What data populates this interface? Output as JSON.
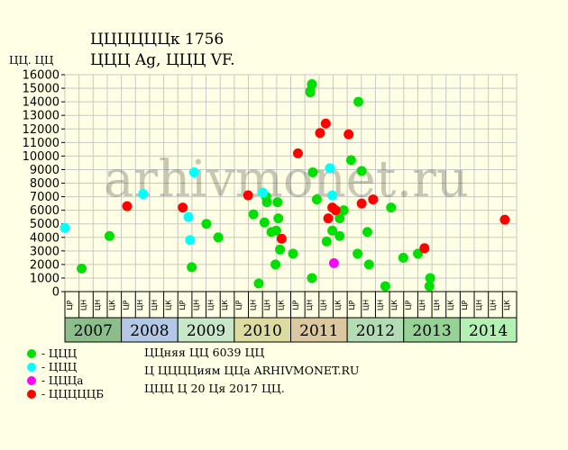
{
  "title_line1": "ЦЦЦЦЦЦк 1756",
  "title_line2": "ЦЦЦ Ag, ЦЦЦ VF.",
  "y_unit": "ЦЦ. ЦЦ",
  "watermark": "arhivmonet.ru",
  "legend": [
    {
      "label": "- ЦЦЦ",
      "color": "#00e000"
    },
    {
      "label": "- ЦЦЦ",
      "color": "#00ffff"
    },
    {
      "label": "- ЦЦЦа",
      "color": "#ff00ff"
    },
    {
      "label": "- ЦЦЦЦЦБ",
      "color": "#ff0000"
    }
  ],
  "notes": [
    "ЦЦняя ЦЦ 6039 ЦЦ",
    "Ц ЦЦЦЦиям ЦЦа ARHIVMONET.RU",
    "ЦЦЦ Ц 20 Ця 2017 ЦЦ."
  ],
  "chart_data": {
    "type": "scatter",
    "ylim": [
      0,
      16000
    ],
    "yticks": [
      0,
      1000,
      2000,
      3000,
      4000,
      5000,
      6000,
      7000,
      8000,
      9000,
      10000,
      11000,
      12000,
      13000,
      14000,
      15000,
      16000
    ],
    "grid": true,
    "legend_position": "bottom-left",
    "x_domain": [
      2007.0,
      2015.0
    ],
    "years": [
      {
        "label": "2007",
        "color": "#8cbe8c"
      },
      {
        "label": "2008",
        "color": "#b4c8e6"
      },
      {
        "label": "2009",
        "color": "#c8e6c8"
      },
      {
        "label": "2010",
        "color": "#dcdca0"
      },
      {
        "label": "2011",
        "color": "#dcc8a0"
      },
      {
        "label": "2012",
        "color": "#b4dcb4"
      },
      {
        "label": "2013",
        "color": "#96d296"
      },
      {
        "label": "2014",
        "color": "#b4f0b4"
      }
    ],
    "month_labels": [
      "ЦР",
      "ЦН",
      "ЦН",
      "ЦК"
    ],
    "series": [
      {
        "name": "ЦЦЦ",
        "color": "#00e000",
        "points": [
          [
            2007.296,
            1700
          ],
          [
            2007.789,
            4100
          ],
          [
            2009.246,
            1800
          ],
          [
            2009.506,
            5000
          ],
          [
            2009.716,
            4000
          ],
          [
            2010.339,
            5700
          ],
          [
            2010.433,
            600
          ],
          [
            2010.563,
            7000
          ],
          [
            2010.534,
            5100
          ],
          [
            2010.577,
            6600
          ],
          [
            2010.657,
            4400
          ],
          [
            2010.743,
            4500
          ],
          [
            2010.729,
            2000
          ],
          [
            2010.765,
            6600
          ],
          [
            2010.78,
            5400
          ],
          [
            2010.809,
            3100
          ],
          [
            2011.04,
            2800
          ],
          [
            2011.346,
            14700
          ],
          [
            2011.346,
            14800
          ],
          [
            2011.375,
            15300
          ],
          [
            2011.39,
            8800
          ],
          [
            2011.375,
            1000
          ],
          [
            2011.462,
            6800
          ],
          [
            2011.635,
            3700
          ],
          [
            2011.736,
            4500
          ],
          [
            2011.866,
            4100
          ],
          [
            2011.866,
            5400
          ],
          [
            2011.938,
            6000
          ],
          [
            2012.068,
            9700
          ],
          [
            2012.198,
            14000
          ],
          [
            2012.184,
            2800
          ],
          [
            2012.256,
            8900
          ],
          [
            2012.357,
            4400
          ],
          [
            2012.386,
            2000
          ],
          [
            2012.675,
            400
          ],
          [
            2012.776,
            6200
          ],
          [
            2012.993,
            2500
          ],
          [
            2013.252,
            2800
          ],
          [
            2013.469,
            1000
          ],
          [
            2013.455,
            400
          ]
        ]
      },
      {
        "name": "ЦЦЦ",
        "color": "#00ffff",
        "points": [
          [
            2007.0,
            4700
          ],
          [
            2008.385,
            7200
          ],
          [
            2009.188,
            5500
          ],
          [
            2009.217,
            3800
          ],
          [
            2009.289,
            8800
          ],
          [
            2010.505,
            7300
          ],
          [
            2011.693,
            9100
          ],
          [
            2011.736,
            7100
          ]
        ]
      },
      {
        "name": "ЦЦЦа",
        "color": "#ff00ff",
        "points": [
          [
            2011.765,
            2100
          ]
        ]
      },
      {
        "name": "ЦЦЦЦЦБ",
        "color": "#ff0000",
        "points": [
          [
            2008.102,
            6300
          ],
          [
            2009.087,
            6200
          ],
          [
            2010.245,
            7100
          ],
          [
            2010.838,
            3900
          ],
          [
            2011.127,
            10200
          ],
          [
            2011.519,
            11700
          ],
          [
            2011.62,
            12400
          ],
          [
            2011.664,
            5400
          ],
          [
            2011.736,
            6200
          ],
          [
            2011.794,
            6000
          ],
          [
            2012.025,
            11600
          ],
          [
            2012.256,
            6500
          ],
          [
            2012.458,
            6800
          ],
          [
            2013.368,
            3200
          ],
          [
            2014.791,
            5300
          ]
        ]
      }
    ]
  }
}
